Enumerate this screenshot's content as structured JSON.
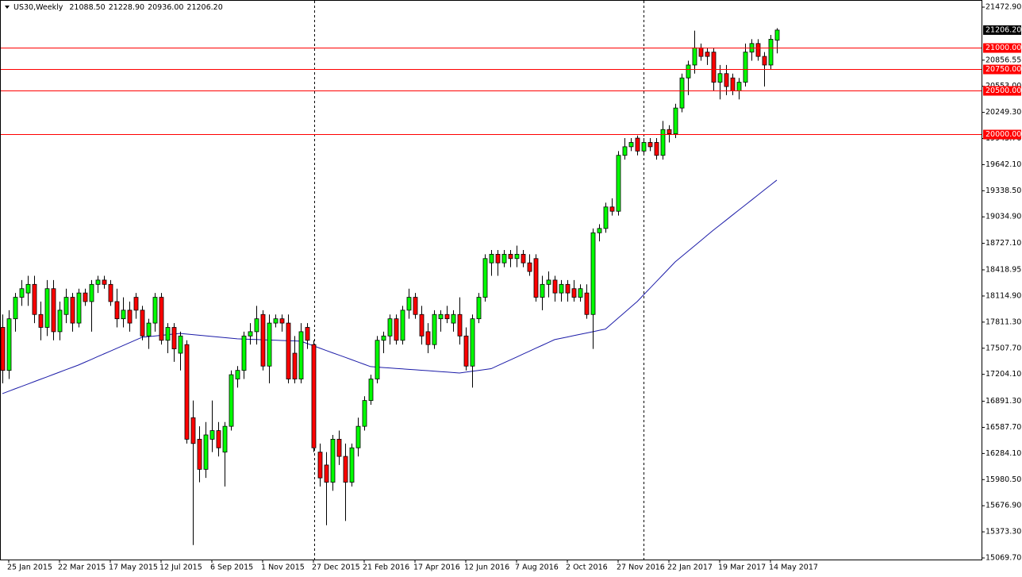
{
  "chart_data": {
    "type": "candlestick",
    "title": "US30,Weekly",
    "ohlc_labels": [
      "21088.50",
      "21228.90",
      "20936.00",
      "21206.20"
    ],
    "categories": [
      null,
      "25 Jan 2015",
      null,
      null,
      null,
      null,
      null,
      null,
      null,
      "22 Mar 2015",
      null,
      null,
      null,
      null,
      null,
      null,
      null,
      "17 May 2015",
      null,
      null,
      null,
      null,
      null,
      null,
      null,
      "12 Jul 2015",
      null,
      null,
      null,
      null,
      null,
      null,
      null,
      "6 Sep 2015",
      null,
      null,
      null,
      null,
      null,
      null,
      null,
      "1 Nov 2015",
      null,
      null,
      null,
      null,
      null,
      null,
      null,
      "27 Dec 2015",
      null,
      null,
      null,
      null,
      null,
      null,
      null,
      "21 Feb 2016",
      null,
      null,
      null,
      null,
      null,
      null,
      null,
      "17 Apr 2016",
      null,
      null,
      null,
      null,
      null,
      null,
      null,
      "12 Jun 2016",
      null,
      null,
      null,
      null,
      null,
      null,
      null,
      "7 Aug 2016",
      null,
      null,
      null,
      null,
      null,
      null,
      null,
      "2 Oct 2016",
      null,
      null,
      null,
      null,
      null,
      null,
      null,
      "27 Nov 2016",
      null,
      null,
      null,
      null,
      null,
      null,
      null,
      "22 Jan 2017",
      null,
      null,
      null,
      null,
      null,
      null,
      null,
      "19 Mar 2017",
      null,
      null,
      null,
      null,
      null,
      null,
      null,
      "14 May 2017",
      null
    ],
    "open": [
      17750,
      17250,
      17850,
      18100,
      18150,
      18250,
      17900,
      17750,
      18200,
      17700,
      17900,
      18100,
      17800,
      18150,
      18050,
      18250,
      18300,
      18250,
      18050,
      17850,
      17950,
      18100,
      17950,
      17650,
      17800,
      18100,
      17600,
      17750,
      17450,
      17550,
      16700,
      16450,
      16100,
      16450,
      16550,
      16300,
      16600,
      17150,
      17250,
      17650,
      17700,
      17900,
      17300,
      17800,
      17850,
      17800,
      17450,
      17150,
      17750,
      17550,
      16300,
      16150,
      15950,
      16450,
      16250,
      15950,
      16350,
      16600,
      16900,
      17150,
      17600,
      17650,
      17850,
      17600,
      17950,
      18100,
      17900,
      17700,
      17550,
      17850,
      17900,
      17800,
      17900,
      17650,
      17300,
      17850,
      18100,
      18500,
      18600,
      18500,
      18600,
      18550,
      18600,
      18500,
      18550,
      18100,
      18250,
      18300,
      18150,
      18250,
      18200,
      18100,
      18150,
      17900,
      18850,
      18900,
      19150,
      19100,
      19750,
      19850,
      19950,
      19800,
      19900,
      19900,
      19750,
      20050,
      20000,
      20300,
      20650,
      20800,
      21000,
      20950,
      20950,
      20600,
      20700,
      20650,
      20500,
      20600,
      20950,
      21050,
      20900,
      20800,
      21088.5
    ],
    "high": [
      17900,
      17950,
      18150,
      18300,
      18350,
      18350,
      18050,
      18300,
      18300,
      18050,
      18200,
      18150,
      18200,
      18200,
      18300,
      18350,
      18350,
      18300,
      18200,
      18100,
      18050,
      18150,
      18000,
      17850,
      18150,
      18150,
      17800,
      17800,
      17700,
      17600,
      16900,
      16600,
      16650,
      16900,
      16650,
      16650,
      17250,
      17300,
      17700,
      17800,
      18000,
      17950,
      17900,
      17900,
      17900,
      17900,
      17650,
      17800,
      17800,
      17600,
      16400,
      16300,
      16500,
      16550,
      16400,
      16400,
      16700,
      16950,
      17200,
      17650,
      17700,
      17900,
      17900,
      18000,
      18200,
      18150,
      18000,
      17800,
      17950,
      17950,
      18000,
      17950,
      18100,
      17750,
      17900,
      18150,
      18600,
      18650,
      18650,
      18650,
      18650,
      18700,
      18650,
      18600,
      18600,
      18350,
      18400,
      18350,
      18300,
      18300,
      18300,
      18250,
      18250,
      18900,
      18950,
      19200,
      19250,
      19800,
      19950,
      19950,
      19980,
      19950,
      19950,
      19950,
      20150,
      20100,
      20350,
      20700,
      20850,
      21200,
      21050,
      21000,
      21000,
      20800,
      20800,
      20700,
      20650,
      21050,
      21100,
      21100,
      20950,
      21150,
      21228.9
    ],
    "low": [
      17100,
      17150,
      17700,
      18000,
      18000,
      17800,
      17600,
      17650,
      17600,
      17600,
      17800,
      17700,
      17750,
      18000,
      17700,
      18150,
      18200,
      18000,
      17750,
      17750,
      17700,
      17850,
      17600,
      17500,
      17700,
      17550,
      17450,
      17350,
      17250,
      16400,
      15220,
      15950,
      16000,
      16300,
      16250,
      15900,
      16550,
      17050,
      17150,
      17550,
      17550,
      17250,
      17100,
      17750,
      17700,
      17100,
      17100,
      17100,
      17500,
      16300,
      15900,
      15450,
      15850,
      16150,
      15500,
      15900,
      16250,
      16550,
      16850,
      17100,
      17450,
      17550,
      17550,
      17550,
      17850,
      17850,
      17550,
      17450,
      17500,
      17700,
      17800,
      17700,
      17550,
      17250,
      17050,
      17800,
      18050,
      18350,
      18350,
      18450,
      18450,
      18450,
      18450,
      18350,
      18050,
      17950,
      18100,
      18050,
      18050,
      18050,
      18050,
      18050,
      17850,
      17500,
      18750,
      18850,
      19050,
      19050,
      19700,
      19800,
      19750,
      19750,
      19800,
      19700,
      19700,
      19900,
      19950,
      20250,
      20450,
      20700,
      20850,
      20800,
      20500,
      20400,
      20450,
      20450,
      20400,
      20550,
      20850,
      20850,
      20550,
      20750,
      20936
    ],
    "close": [
      17250,
      17850,
      18100,
      18200,
      18250,
      17900,
      17750,
      18200,
      17700,
      17950,
      18100,
      17800,
      18150,
      18050,
      18250,
      18300,
      18250,
      18050,
      17850,
      17950,
      17800,
      17950,
      17650,
      17800,
      18100,
      17600,
      17750,
      17500,
      17650,
      16450,
      16400,
      16100,
      16500,
      16550,
      16350,
      16600,
      17200,
      17250,
      17650,
      17700,
      17850,
      17300,
      17800,
      17850,
      17800,
      17150,
      17150,
      17700,
      17600,
      16350,
      16000,
      15950,
      16450,
      16250,
      15950,
      16350,
      16600,
      16900,
      17150,
      17600,
      17650,
      17850,
      17600,
      17950,
      18100,
      17900,
      17650,
      17550,
      17900,
      17900,
      17850,
      17900,
      17650,
      17300,
      17850,
      18100,
      18550,
      18600,
      18500,
      18600,
      18550,
      18600,
      18500,
      18400,
      18100,
      18250,
      18300,
      18150,
      18250,
      18150,
      18100,
      18200,
      17900,
      18850,
      18900,
      19150,
      19100,
      19750,
      19850,
      19900,
      19800,
      19900,
      19850,
      19750,
      20050,
      20000,
      20300,
      20650,
      20800,
      21000,
      20900,
      20900,
      20600,
      20700,
      20550,
      20500,
      20600,
      20950,
      21050,
      20900,
      20800,
      21100,
      21206.2
    ],
    "up_color": "#00ff00",
    "down_color": "#ff0000",
    "wick_color": "#000000",
    "moving_average": {
      "color": "#1c1ca8",
      "values": [
        16980,
        17008,
        17036,
        17063,
        17091,
        17119,
        17147,
        17174,
        17202,
        17230,
        17258,
        17285,
        17313,
        17345,
        17377,
        17410,
        17442,
        17474,
        17506,
        17538,
        17571,
        17603,
        17635,
        17643,
        17650,
        17658,
        17665,
        17673,
        17680,
        17673,
        17666,
        17659,
        17652,
        17645,
        17638,
        17631,
        17624,
        17617,
        17614,
        17612,
        17609,
        17606,
        17604,
        17601,
        17598,
        17595,
        17593,
        17590,
        17563,
        17536,
        17509,
        17482,
        17455,
        17429,
        17402,
        17375,
        17348,
        17321,
        17294,
        17289,
        17283,
        17278,
        17273,
        17268,
        17262,
        17257,
        17252,
        17247,
        17241,
        17236,
        17231,
        17225,
        17220,
        17230,
        17240,
        17250,
        17260,
        17270,
        17304,
        17338,
        17371,
        17405,
        17439,
        17473,
        17507,
        17540,
        17574,
        17608,
        17623,
        17638,
        17654,
        17669,
        17684,
        17699,
        17715,
        17730,
        17794,
        17858,
        17922,
        17986,
        18050,
        18127,
        18204,
        18281,
        18358,
        18435,
        18512,
        18573,
        18635,
        18696,
        18757,
        18819,
        18880,
        18938,
        18996,
        19055,
        19113,
        19171,
        19229,
        19287,
        19346,
        19404,
        19462
      ]
    },
    "levels": [
      {
        "value": 21000,
        "label": "21000.00"
      },
      {
        "value": 20750,
        "label": "20750.00"
      },
      {
        "value": 20500,
        "label": "20500.00"
      },
      {
        "value": 20000,
        "label": "20000.00"
      }
    ],
    "level_color": "#ff0000",
    "price_label": {
      "value": 21206.2,
      "label": "21206.20"
    },
    "ylim": [
      15051.25,
      21555.94
    ],
    "yticks": [
      {
        "value": 21472.9,
        "label": "21472.90"
      },
      {
        "value": 20856.55,
        "label": "20856.55"
      },
      {
        "value": 20553,
        "label": "20553.00"
      },
      {
        "value": 20249.3,
        "label": "20249.30"
      },
      {
        "value": 19945.7,
        "label": "19945.70"
      },
      {
        "value": 19642.1,
        "label": "19642.10"
      },
      {
        "value": 19338.5,
        "label": "19338.50"
      },
      {
        "value": 19034.9,
        "label": "19034.90"
      },
      {
        "value": 18727.1,
        "label": "18727.10"
      },
      {
        "value": 18418.95,
        "label": "18418.95"
      },
      {
        "value": 18114.9,
        "label": "18114.90"
      },
      {
        "value": 17811.3,
        "label": "17811.30"
      },
      {
        "value": 17507.7,
        "label": "17507.70"
      },
      {
        "value": 17204.1,
        "label": "17204.10"
      },
      {
        "value": 16891.3,
        "label": "16891.30"
      },
      {
        "value": 16587.7,
        "label": "16587.70"
      },
      {
        "value": 16284.1,
        "label": "16284.10"
      },
      {
        "value": 15980.5,
        "label": "15980.50"
      },
      {
        "value": 15676.9,
        "label": "15676.90"
      },
      {
        "value": 15373.3,
        "label": "15373.30"
      },
      {
        "value": 15069.7,
        "label": "15069.70"
      }
    ]
  }
}
